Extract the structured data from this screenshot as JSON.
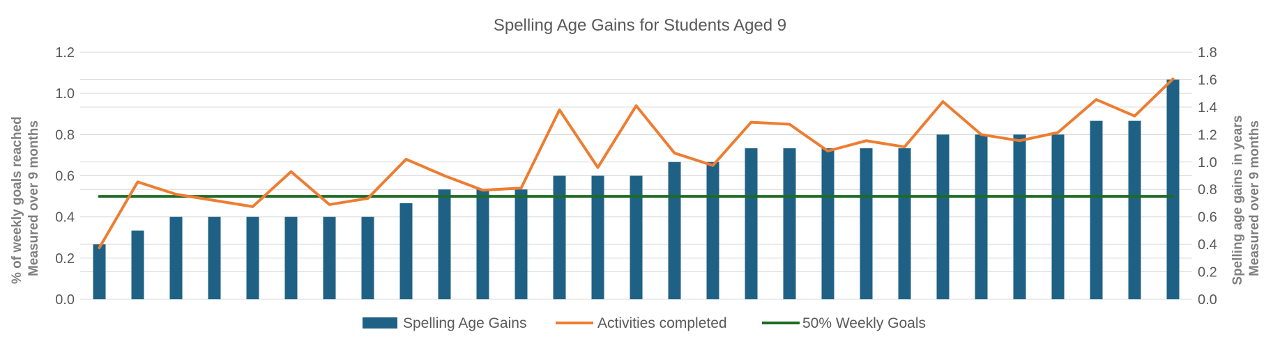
{
  "chart_data": {
    "type": "bar",
    "title": "Spelling Age Gains for Students Aged 9",
    "y_left_label": [
      "% of weekly goals reached",
      "Measured over 9 months"
    ],
    "y_right_label": [
      "Spelling age gains in years",
      "Measured over 9 months"
    ],
    "y_left_lim": [
      0,
      1.2
    ],
    "y_left_ticks": [
      "0.0",
      "0.2",
      "0.4",
      "0.6",
      "0.8",
      "1.0",
      "1.2"
    ],
    "y_right_lim": [
      0,
      1.8
    ],
    "y_right_ticks": [
      "0.0",
      "0.2",
      "0.4",
      "0.6",
      "0.8",
      "1.0",
      "1.2",
      "1.4",
      "1.6",
      "1.8"
    ],
    "grid": true,
    "legend_position": "bottom",
    "n_points": 29,
    "series": [
      {
        "name": "Spelling Age Gains",
        "type": "bar",
        "axis": "right",
        "color": "#1f6185",
        "values": [
          0.4,
          0.5,
          0.6,
          0.6,
          0.6,
          0.6,
          0.6,
          0.6,
          0.7,
          0.8,
          0.8,
          0.8,
          0.9,
          0.9,
          0.9,
          1.0,
          1.0,
          1.1,
          1.1,
          1.1,
          1.1,
          1.1,
          1.2,
          1.2,
          1.2,
          1.2,
          1.3,
          1.3,
          1.6
        ]
      },
      {
        "name": "Activities completed",
        "type": "line",
        "axis": "left",
        "color": "#ed7d31",
        "values": [
          0.25,
          0.57,
          0.51,
          0.48,
          0.45,
          0.62,
          0.46,
          0.49,
          0.68,
          0.6,
          0.53,
          0.54,
          0.92,
          0.64,
          0.94,
          0.71,
          0.65,
          0.86,
          0.85,
          0.72,
          0.77,
          0.74,
          0.96,
          0.8,
          0.77,
          0.81,
          0.97,
          0.89,
          1.07
        ]
      },
      {
        "name": "50% Weekly Goals",
        "type": "line",
        "axis": "left",
        "color": "#1e6b24",
        "values": [
          0.5,
          0.5,
          0.5,
          0.5,
          0.5,
          0.5,
          0.5,
          0.5,
          0.5,
          0.5,
          0.5,
          0.5,
          0.5,
          0.5,
          0.5,
          0.5,
          0.5,
          0.5,
          0.5,
          0.5,
          0.5,
          0.5,
          0.5,
          0.5,
          0.5,
          0.5,
          0.5,
          0.5,
          0.5
        ]
      }
    ]
  }
}
